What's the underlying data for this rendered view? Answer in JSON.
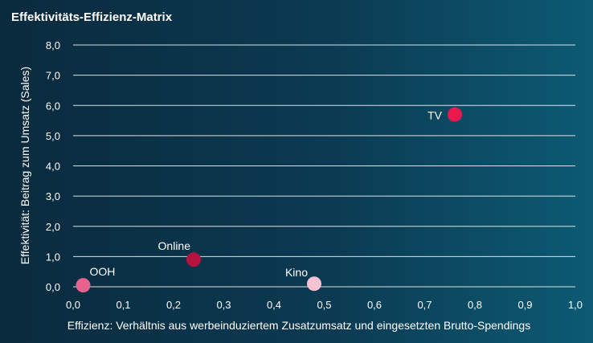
{
  "chart_data": {
    "type": "scatter",
    "title": "Effektivitäts-Effizienz-Matrix",
    "xlabel": "Effizienz: Verhältnis aus werbeinduziertem Zusatzumsatz und eingesetzten Brutto-Spendings",
    "ylabel": "Effektivität: Beitrag zum Umsatz (Sales)",
    "xlim": [
      0,
      1.0
    ],
    "ylim": [
      0,
      8.0
    ],
    "x_ticks": [
      "0,0",
      "0,1",
      "0,2",
      "0,3",
      "0,4",
      "0,5",
      "0,6",
      "0,7",
      "0,8",
      "0,9",
      "1,0"
    ],
    "y_ticks": [
      "0,0",
      "1,0",
      "2,0",
      "3,0",
      "4,0",
      "5,0",
      "6,0",
      "7,0",
      "8,0"
    ],
    "grid": true,
    "points": [
      {
        "label": "OOH",
        "x": 0.02,
        "y": 0.05,
        "color": "#e8628e"
      },
      {
        "label": "Online",
        "x": 0.24,
        "y": 0.9,
        "color": "#b5123f"
      },
      {
        "label": "Kino",
        "x": 0.48,
        "y": 0.1,
        "color": "#f7c3d3"
      },
      {
        "label": "TV",
        "x": 0.76,
        "y": 5.7,
        "color": "#e8194d"
      }
    ]
  }
}
